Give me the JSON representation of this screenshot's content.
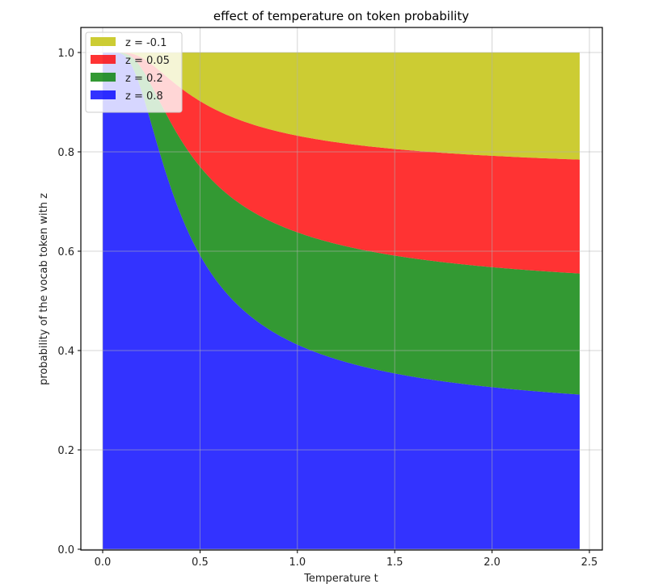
{
  "chart_data": {
    "type": "area",
    "stacked": true,
    "title": "effect of temperature on token probability",
    "xlabel": "Temperature t",
    "ylabel": "probability of the vocab token with z",
    "xlim": [
      -0.11,
      2.57
    ],
    "ylim": [
      0.0,
      1.05
    ],
    "x_range": [
      0.0,
      2.45
    ],
    "xticks": [
      "0.0",
      "0.5",
      "1.0",
      "1.5",
      "2.0",
      "2.5"
    ],
    "yticks": [
      "0.0",
      "0.2",
      "0.4",
      "0.6",
      "0.8",
      "1.0"
    ],
    "grid": true,
    "legend_position": "upper left",
    "logits": [
      -0.1,
      0.05,
      0.2,
      0.8
    ],
    "series": [
      {
        "name": "z = -0.1",
        "z": -0.1,
        "color": "#bfbf00",
        "cumulative_top": [
          1.0,
          1.0,
          1.0,
          1.0,
          1.0,
          1.0
        ]
      },
      {
        "name": "z = 0.05",
        "z": 0.05,
        "color": "#ff0000",
        "cumulative_top": [
          1.0,
          0.99,
          0.88,
          0.832,
          0.806,
          0.785
        ]
      },
      {
        "name": "z = 0.2",
        "z": 0.2,
        "color": "#008000",
        "cumulative_top": [
          1.0,
          0.96,
          0.74,
          0.638,
          0.59,
          0.555
        ]
      },
      {
        "name": "z = 0.8",
        "z": 0.8,
        "color": "#0000ff",
        "cumulative_top": [
          1.0,
          0.9,
          0.59,
          0.412,
          0.355,
          0.311
        ]
      }
    ],
    "x": [
      0.0,
      0.2,
      0.5,
      1.0,
      1.5,
      2.45
    ],
    "alpha": 0.8
  }
}
